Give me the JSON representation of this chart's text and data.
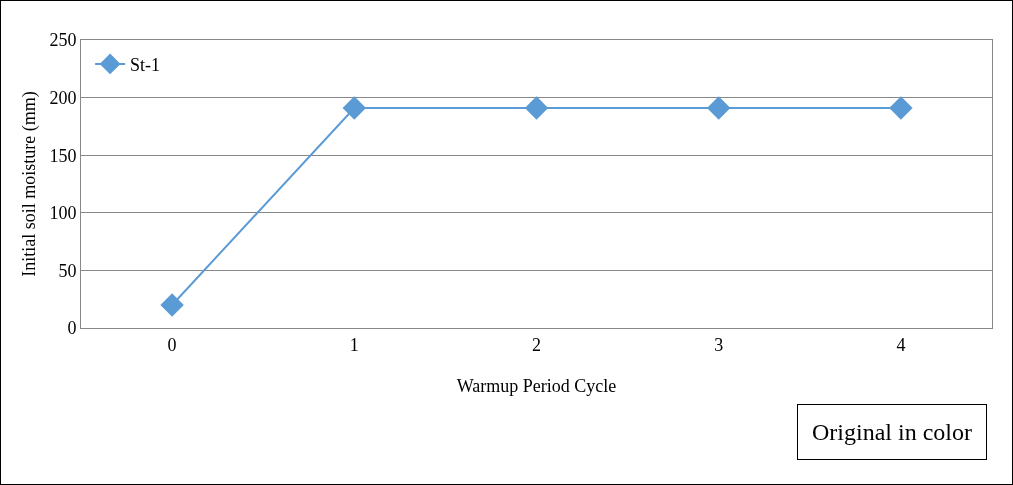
{
  "chart_data": {
    "type": "line",
    "xlabel": "Warmup Period Cycle",
    "ylabel": "Initial soil moisture (mm)",
    "categories": [
      "0",
      "1",
      "2",
      "3",
      "4"
    ],
    "series": [
      {
        "name": "St-1",
        "color": "#5b9bd5",
        "values": [
          20,
          191,
          191,
          191,
          191
        ]
      }
    ],
    "ylim": [
      0,
      250
    ],
    "yticks": [
      0,
      50,
      100,
      150,
      200,
      250
    ],
    "grid": "y",
    "legend": "top left",
    "marker": "diamond",
    "line_style": "solid",
    "annotations": [
      "Original in color"
    ]
  }
}
